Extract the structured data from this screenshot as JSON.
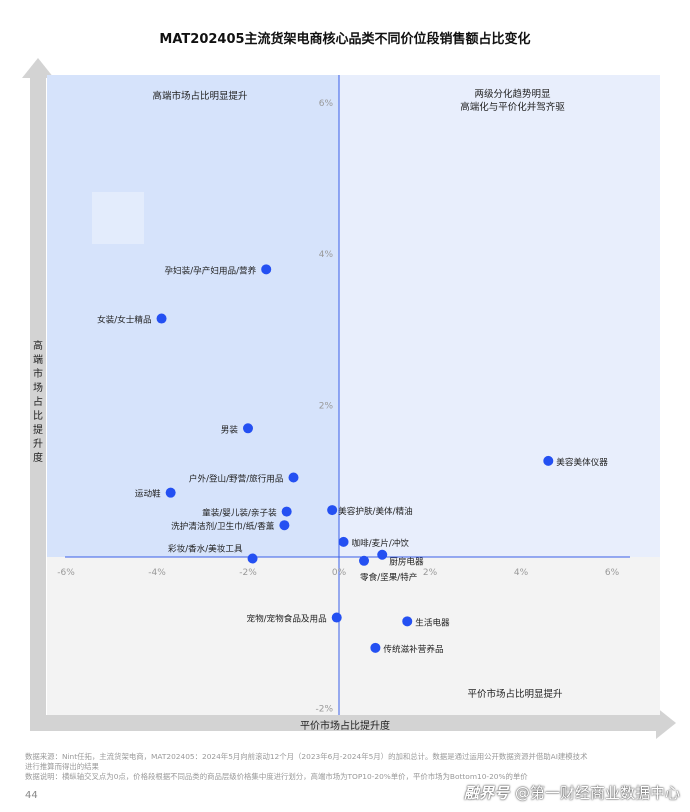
{
  "chart_data": {
    "type": "scatter",
    "title": "MAT202405主流货架电商核心品类不同价位段销售额占比变化",
    "xlabel": "平价市场占比提升度",
    "ylabel": "高端市场占比提升度",
    "xlim": [
      -6.5,
      7
    ],
    "ylim": [
      -2.2,
      6.3
    ],
    "x_ticks": [
      "-6%",
      "-4%",
      "-2%",
      "0%",
      "2%",
      "4%",
      "6%"
    ],
    "y_ticks": [
      "-2%",
      "0%",
      "2%",
      "4%",
      "6%"
    ],
    "quadrant_labels": {
      "top_left": "高端市场占比明显提升",
      "top_right_line1": "两级分化趋势明显",
      "top_right_line2": "高端化与平价化并驾齐驱",
      "bottom_right": "平价市场占比明显提升"
    },
    "colors": {
      "point": "#2450f2",
      "axis_line": "#3a5fe8",
      "quadrant_top_left": "#d6e3fb",
      "quadrant_top_right": "#e8eefc",
      "quadrant_bottom": "#f3f3f3",
      "arrow": "#d3d3d3"
    },
    "points": [
      {
        "label": "孕妇装/孕产妇用品/营养",
        "x": -1.6,
        "y": 3.8
      },
      {
        "label": "女装/女士精品",
        "x": -3.9,
        "y": 3.15
      },
      {
        "label": "男装",
        "x": -2.0,
        "y": 1.7
      },
      {
        "label": "户外/登山/野营/旅行用品",
        "x": -1.0,
        "y": 1.05
      },
      {
        "label": "运动鞋",
        "x": -3.7,
        "y": 0.85
      },
      {
        "label": "童装/婴儿装/亲子装",
        "x": -1.15,
        "y": 0.6
      },
      {
        "label": "洗护清洁剂/卫生巾/纸/香薰",
        "x": -1.2,
        "y": 0.42
      },
      {
        "label": "彩妆/香水/美妆工具",
        "x": -1.9,
        "y": -0.02
      },
      {
        "label": "美容护肤/美体/精油",
        "x": -0.15,
        "y": 0.62
      },
      {
        "label": "咖啡/麦片/冲饮",
        "x": 0.1,
        "y": 0.2
      },
      {
        "label": "厨房电器",
        "x": 0.95,
        "y": 0.03
      },
      {
        "label": "零食/坚果/特产",
        "x": 0.55,
        "y": -0.05
      },
      {
        "label": "美容美体仪器",
        "x": 4.6,
        "y": 1.27
      },
      {
        "label": "宠物/宠物食品及用品",
        "x": -0.05,
        "y": -0.8
      },
      {
        "label": "生活电器",
        "x": 1.5,
        "y": -0.85
      },
      {
        "label": "传统滋补营养品",
        "x": 0.8,
        "y": -1.2
      }
    ]
  },
  "notes": {
    "line1": "数据来源：Nint任拓，主流货架电商，MAT202405：2024年5月向前滚动12个月（2023年6月-2024年5月）的加和总计。数据是通过运用公开数据资源并借助AI建模技术",
    "line2": "进行推算而得出的结果",
    "line3": "数据说明：横纵轴交叉点为0点，价格段根据不同品类的商品层级价格集中度进行划分，高端市场为TOP10-20%单价，平价市场为Bottom10-20%的单价"
  },
  "page_number": "44",
  "footer": {
    "logo": "融界号",
    "brand": "@第一财经商业数据中心"
  }
}
